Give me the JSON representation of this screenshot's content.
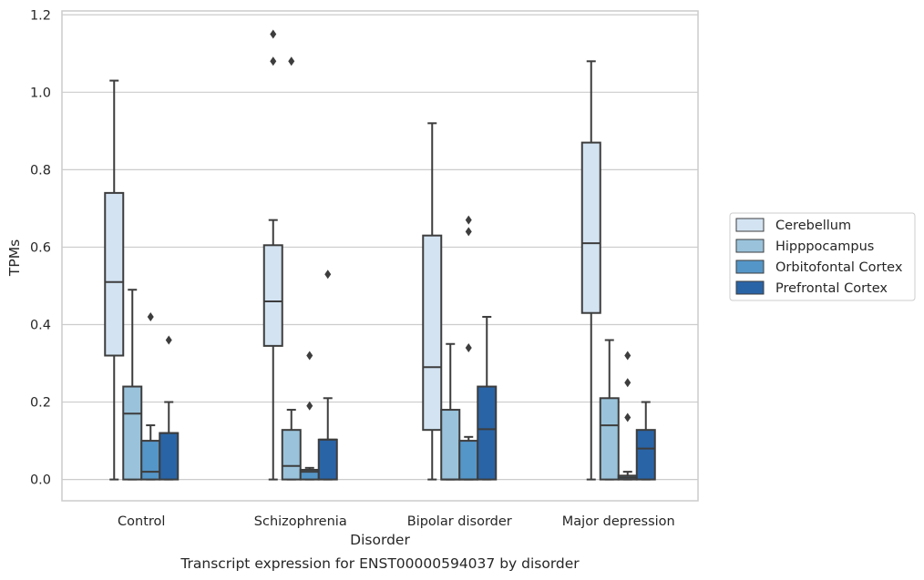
{
  "chart_data": {
    "type": "box",
    "xlabel": "Disorder",
    "ylabel": "TPMs",
    "caption": "Transcript expression for ENST00000594037 by disorder",
    "ylim": [
      -0.055,
      1.21
    ],
    "yticks": [
      "0.0",
      "0.2",
      "0.4",
      "0.6",
      "0.8",
      "1.0",
      "1.2"
    ],
    "ytick_values": [
      0.0,
      0.2,
      0.4,
      0.6,
      0.8,
      1.0,
      1.2
    ],
    "grid": "horizontal",
    "legend_position": "right",
    "categories": [
      "Control",
      "Schizophrenia",
      "Bipolar disorder",
      "Major depression"
    ],
    "series": [
      {
        "name": "Cerebellum",
        "color": "#d3e3f2",
        "boxes": [
          {
            "min": 0.0,
            "q1": 0.32,
            "median": 0.51,
            "q3": 0.74,
            "max": 1.03,
            "outliers": []
          },
          {
            "min": 0.0,
            "q1": 0.345,
            "median": 0.46,
            "q3": 0.605,
            "max": 0.67,
            "outliers": [
              1.15,
              1.08
            ]
          },
          {
            "min": 0.0,
            "q1": 0.128,
            "median": 0.29,
            "q3": 0.63,
            "max": 0.92,
            "outliers": []
          },
          {
            "min": 0.0,
            "q1": 0.43,
            "median": 0.61,
            "q3": 0.87,
            "max": 1.08,
            "outliers": []
          }
        ]
      },
      {
        "name": "Hipppocampus",
        "color": "#9ac3db",
        "boxes": [
          {
            "min": 0.0,
            "q1": 0.0,
            "median": 0.17,
            "q3": 0.24,
            "max": 0.49,
            "outliers": []
          },
          {
            "min": 0.0,
            "q1": 0.0,
            "median": 0.035,
            "q3": 0.128,
            "max": 0.18,
            "outliers": [
              1.08
            ]
          },
          {
            "min": 0.0,
            "q1": 0.0,
            "median": 0.0,
            "q3": 0.18,
            "max": 0.35,
            "outliers": []
          },
          {
            "min": 0.0,
            "q1": 0.0,
            "median": 0.14,
            "q3": 0.21,
            "max": 0.36,
            "outliers": []
          }
        ]
      },
      {
        "name": "Orbitofontal Cortex",
        "color": "#5596c8",
        "boxes": [
          {
            "min": 0.0,
            "q1": 0.0,
            "median": 0.02,
            "q3": 0.1,
            "max": 0.14,
            "outliers": [
              0.42
            ]
          },
          {
            "min": 0.0,
            "q1": 0.0,
            "median": 0.02,
            "q3": 0.025,
            "max": 0.03,
            "outliers": [
              0.32,
              0.19
            ]
          },
          {
            "min": 0.0,
            "q1": 0.0,
            "median": 0.0,
            "q3": 0.1,
            "max": 0.11,
            "outliers": [
              0.67,
              0.64,
              0.34
            ]
          },
          {
            "min": 0.0,
            "q1": 0.0,
            "median": 0.005,
            "q3": 0.01,
            "max": 0.02,
            "outliers": [
              0.32,
              0.25,
              0.16
            ]
          }
        ]
      },
      {
        "name": "Prefrontal Cortex",
        "color": "#2964a6",
        "boxes": [
          {
            "min": 0.0,
            "q1": 0.0,
            "median": 0.12,
            "q3": 0.12,
            "max": 0.2,
            "outliers": [
              0.36
            ]
          },
          {
            "min": 0.0,
            "q1": 0.0,
            "median": 0.103,
            "q3": 0.103,
            "max": 0.21,
            "outliers": [
              0.53
            ]
          },
          {
            "min": 0.0,
            "q1": 0.0,
            "median": 0.13,
            "q3": 0.24,
            "max": 0.42,
            "outliers": []
          },
          {
            "min": 0.0,
            "q1": 0.0,
            "median": 0.08,
            "q3": 0.128,
            "max": 0.2,
            "outliers": []
          }
        ]
      }
    ]
  }
}
